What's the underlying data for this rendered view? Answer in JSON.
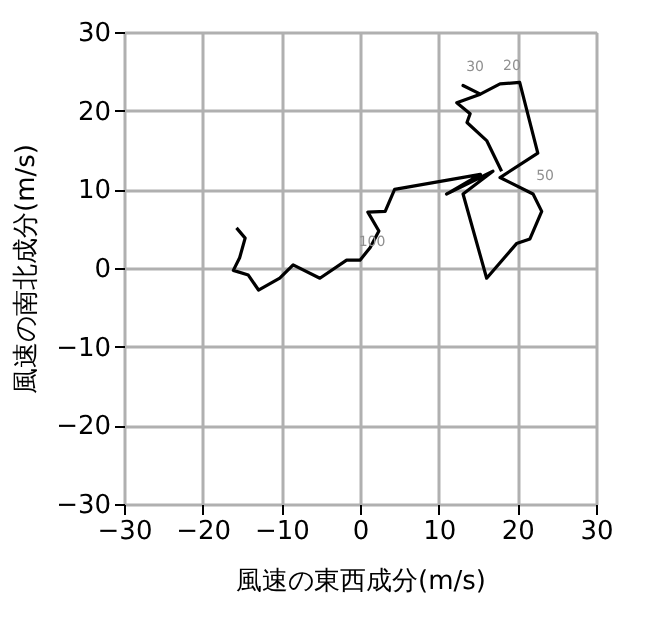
{
  "chart_data": {
    "type": "line",
    "xlabel": "風速の東西成分(m/s)",
    "ylabel": "風速の南北成分(m/s)",
    "xlim": [
      -30,
      30
    ],
    "ylim": [
      -30,
      30
    ],
    "xticks": [
      -30,
      -20,
      -10,
      0,
      10,
      20,
      30
    ],
    "yticks": [
      -30,
      -20,
      -10,
      0,
      10,
      20,
      30
    ],
    "grid": true,
    "marker": "none",
    "line_style": "solid",
    "series": [
      {
        "color": "#000000",
        "x": [
          -15.7,
          -14.6,
          -15.3,
          -16.1,
          -14.2,
          -12.9,
          -10.2,
          -8.5,
          -5.1,
          -1.7,
          0,
          1.3,
          2.4,
          1.0,
          3.2,
          4.4,
          15.3,
          11.0,
          16.9,
          13.1,
          16.1,
          19.9,
          21.6,
          23.1,
          22.0,
          17.8,
          22.6,
          20.3,
          17.8,
          15.3,
          13.1,
          15.3,
          12.3,
          14.0,
          13.6,
          16.1,
          18.0
        ],
        "values": [
          5.1,
          3.8,
          1.3,
          -0.3,
          -0.9,
          -2.8,
          -1.3,
          0.4,
          -1.3,
          1.0,
          1.0,
          2.6,
          4.7,
          7.1,
          7.2,
          10.0,
          11.9,
          9.4,
          12.3,
          9.4,
          -1.3,
          3.1,
          3.7,
          7.2,
          9.4,
          11.5,
          14.6,
          23.6,
          23.4,
          22.1,
          23.2,
          22.1,
          21.0,
          19.6,
          18.5,
          16.2,
          12.3
        ]
      }
    ],
    "annotations": [
      {
        "text": "30",
        "x": 13.1,
        "y": 23.2
      },
      {
        "text": "20",
        "x": 17.8,
        "y": 23.4
      },
      {
        "text": "50",
        "x": 22.0,
        "y": 9.4
      },
      {
        "text": "100",
        "x": 0,
        "y": 1.0
      }
    ]
  }
}
